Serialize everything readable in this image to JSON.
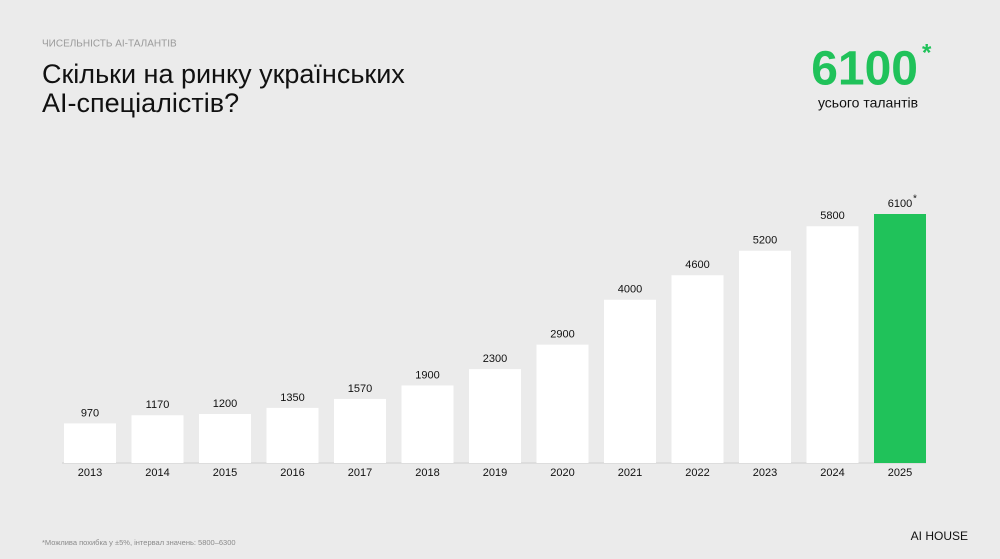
{
  "chart_data": {
    "type": "bar",
    "kicker": "ЧИСЕЛЬНІСТЬ AI-ТАЛАНТІВ",
    "title": [
      "Скільки на ринку українських",
      "AI-спеціалістів?"
    ],
    "total": 6100,
    "note_marker": "*",
    "total_label": "усього талантів",
    "categories": [
      "2013",
      "2014",
      "2015",
      "2016",
      "2017",
      "2018",
      "2019",
      "2020",
      "2021",
      "2022",
      "2023",
      "2024",
      "2025"
    ],
    "values": [
      970,
      1170,
      1200,
      1350,
      1570,
      1900,
      2300,
      2900,
      4000,
      4600,
      5200,
      5800,
      6100
    ],
    "colors": [
      "#ffffff",
      "#ffffff",
      "#ffffff",
      "#ffffff",
      "#ffffff",
      "#ffffff",
      "#ffffff",
      "#ffffff",
      "#ffffff",
      "#ffffff",
      "#ffffff",
      "#ffffff",
      "#20c25a"
    ],
    "accent_color": "#20c25a",
    "footnote": "*Можлива похибка у ±5%, інтервал значень: 5800–6300",
    "brand": "AI HOUSE"
  }
}
